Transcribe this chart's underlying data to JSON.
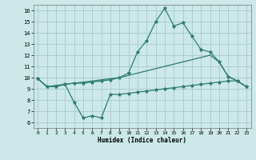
{
  "xlabel": "Humidex (Indice chaleur)",
  "x": [
    0,
    1,
    2,
    3,
    4,
    5,
    6,
    7,
    8,
    9,
    10,
    11,
    12,
    13,
    14,
    15,
    16,
    17,
    18,
    19,
    20,
    21,
    22,
    23
  ],
  "line1": [
    9.9,
    9.2,
    9.2,
    9.4,
    9.5,
    9.5,
    9.6,
    9.7,
    9.8,
    10.0,
    10.4,
    12.3,
    13.3,
    15.0,
    16.2,
    14.6,
    14.9,
    13.7,
    12.5,
    12.3,
    11.4,
    10.1,
    9.7,
    9.2
  ],
  "line2": [
    9.9,
    9.2,
    9.3,
    9.4,
    9.5,
    9.6,
    9.7,
    9.8,
    9.9,
    10.0,
    10.2,
    10.4,
    10.6,
    10.8,
    11.0,
    11.2,
    11.4,
    11.6,
    11.8,
    12.0,
    11.4,
    10.1,
    9.7,
    9.2
  ],
  "line3": [
    9.9,
    9.2,
    9.2,
    9.4,
    7.8,
    6.4,
    6.6,
    6.4,
    8.5,
    8.5,
    8.6,
    8.7,
    8.8,
    8.9,
    9.0,
    9.1,
    9.2,
    9.3,
    9.4,
    9.5,
    9.6,
    9.7,
    9.7,
    9.2
  ],
  "line_color": "#2e7d6e",
  "bg_color": "#cce8e8",
  "grid_color": "#aacece",
  "xlim": [
    -0.5,
    23.5
  ],
  "ylim": [
    5.5,
    16.5
  ],
  "yticks": [
    6,
    7,
    8,
    9,
    10,
    11,
    12,
    13,
    14,
    15,
    16
  ],
  "xticks": [
    0,
    1,
    2,
    3,
    4,
    5,
    6,
    7,
    8,
    9,
    10,
    11,
    12,
    13,
    14,
    15,
    16,
    17,
    18,
    19,
    20,
    21,
    22,
    23
  ]
}
